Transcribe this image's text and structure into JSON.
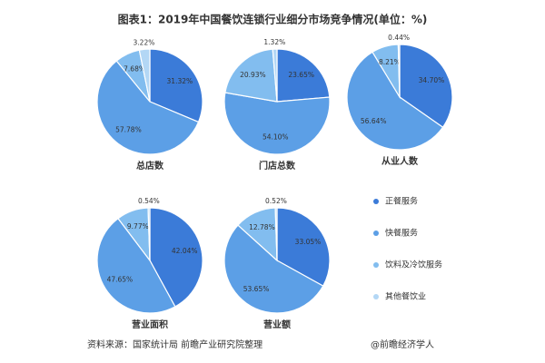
{
  "title": "图表1：2019年中国餐饮连锁行业细分市场竞争情况(单位：%)",
  "legend": {
    "labels": [
      "正餐服务",
      "快餐服务",
      "饮料及冷饮服务",
      "其他餐饮业"
    ],
    "colors": [
      "#3b7bd8",
      "#5c9fe6",
      "#82bdef",
      "#b3d7f5"
    ]
  },
  "source": "资料来源：国家统计局 前瞻产业研究院整理",
  "credit": "@前瞻经济学人",
  "chart_data": [
    {
      "type": "pie",
      "title": "总店数",
      "values": [
        31.32,
        57.78,
        7.68,
        3.22
      ],
      "value_labels": [
        "31.32%",
        "57.78%",
        "7.68%",
        "3.22%"
      ]
    },
    {
      "type": "pie",
      "title": "门店总数",
      "values": [
        23.65,
        54.1,
        20.93,
        1.32
      ],
      "value_labels": [
        "23.65%",
        "54.10%",
        "20.93%",
        "1.32%"
      ]
    },
    {
      "type": "pie",
      "title": "从业人数",
      "values": [
        34.7,
        56.64,
        8.21,
        0.44
      ],
      "value_labels": [
        "34.70%",
        "56.64%",
        "8.21%",
        "0.44%"
      ]
    },
    {
      "type": "pie",
      "title": "营业面积",
      "values": [
        42.04,
        47.65,
        9.77,
        0.54
      ],
      "value_labels": [
        "42.04%",
        "47.65%",
        "9.77%",
        "0.54%"
      ]
    },
    {
      "type": "pie",
      "title": "营业额",
      "values": [
        33.05,
        53.65,
        12.78,
        0.52
      ],
      "value_labels": [
        "33.05%",
        "53.65%",
        "12.78%",
        "0.52%"
      ]
    }
  ]
}
